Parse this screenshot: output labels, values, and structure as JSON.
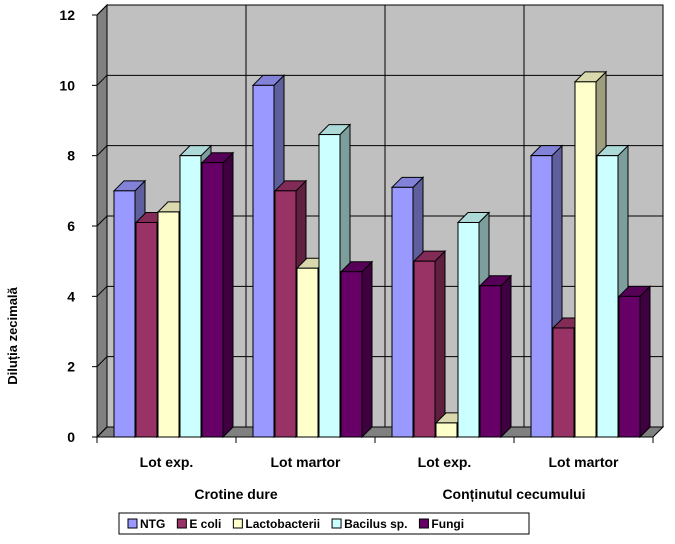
{
  "chart_data": {
    "type": "bar",
    "three_d": true,
    "ylabel": "Diluția zecimală",
    "ylim": [
      0,
      12
    ],
    "yticks": [
      0,
      2,
      4,
      6,
      8,
      10,
      12
    ],
    "grid": true,
    "legend_position": "bottom",
    "categories": [
      "Lot exp.",
      "Lot martor",
      "Lot exp.",
      "Lot martor"
    ],
    "groups": [
      {
        "label": "Crotine dure",
        "span": [
          0,
          1
        ]
      },
      {
        "label": "Conținutul cecumului",
        "span": [
          2,
          3
        ]
      }
    ],
    "series": [
      {
        "name": "NTG",
        "color": "#9999ff",
        "values": [
          7,
          10,
          7.1,
          8
        ]
      },
      {
        "name": "E coli",
        "color": "#993366",
        "values": [
          6.1,
          7,
          5,
          3.1
        ]
      },
      {
        "name": "Lactobacterii",
        "color": "#ffffcc",
        "values": [
          6.4,
          4.8,
          0.4,
          10.1
        ]
      },
      {
        "name": "Bacilus sp.",
        "color": "#ccffff",
        "values": [
          8,
          8.6,
          6.1,
          8
        ]
      },
      {
        "name": "Fungi",
        "color": "#660066",
        "values": [
          7.8,
          4.7,
          4.3,
          4
        ]
      }
    ]
  }
}
